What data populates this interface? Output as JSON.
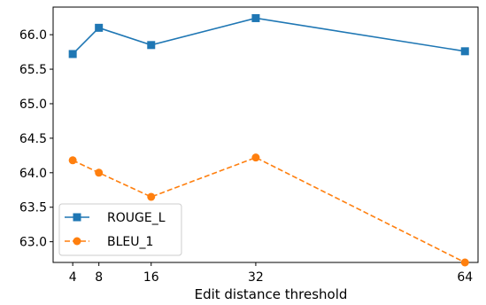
{
  "chart_data": {
    "type": "line",
    "xlabel": "Edit distance threshold",
    "ylabel": "",
    "x": [
      4,
      8,
      16,
      32,
      64
    ],
    "xticks": [
      4,
      8,
      16,
      32,
      64
    ],
    "xlim": [
      1,
      66
    ],
    "ylim": [
      62.7,
      66.4
    ],
    "yticks": [
      63.0,
      63.5,
      64.0,
      64.5,
      65.0,
      65.5,
      66.0
    ],
    "grid": false,
    "legend_position": "lower-left",
    "series": [
      {
        "name": "ROUGE_L",
        "values": [
          65.72,
          66.1,
          65.85,
          66.24,
          65.76
        ],
        "color": "#1f77b4",
        "marker": "square",
        "linestyle": "solid"
      },
      {
        "name": "BLEU_1",
        "values": [
          64.18,
          64.0,
          63.65,
          64.22,
          62.7
        ],
        "color": "#ff7f0e",
        "marker": "circle",
        "linestyle": "dashed"
      }
    ]
  }
}
